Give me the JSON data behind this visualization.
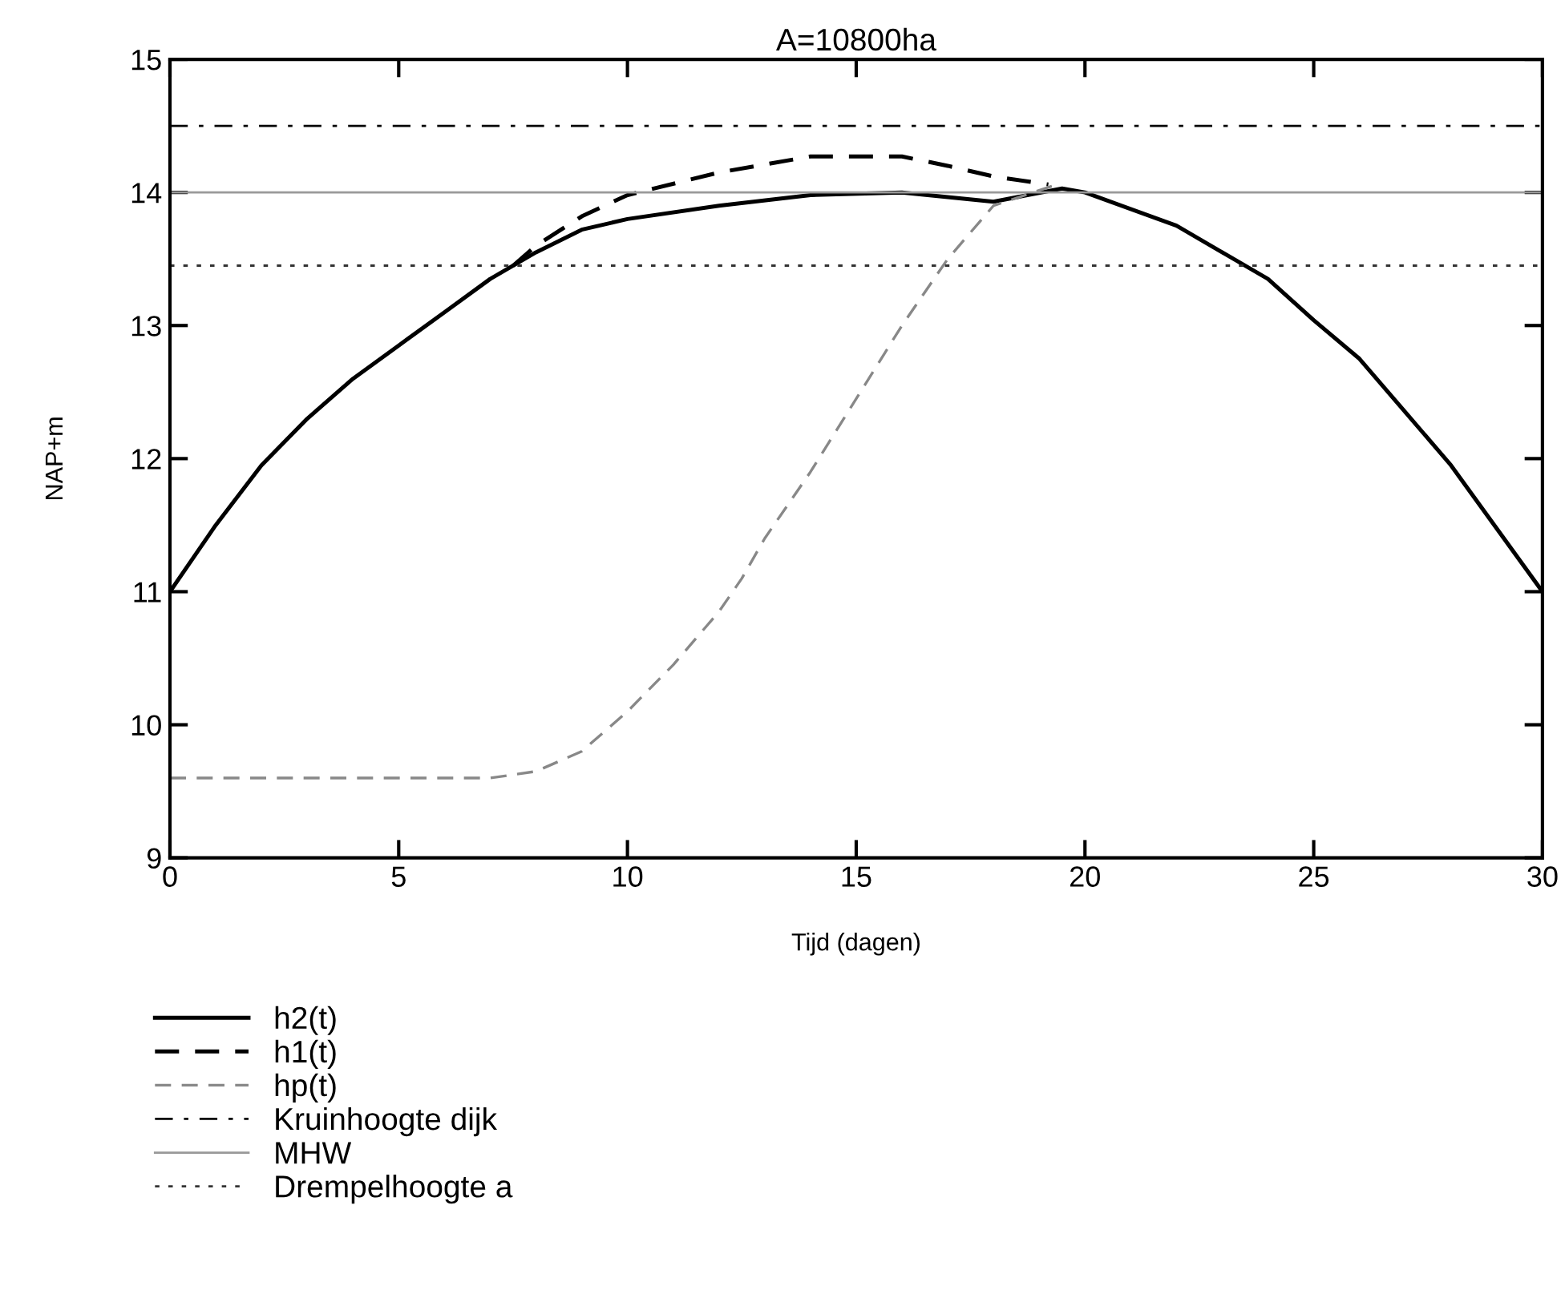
{
  "chart_data": {
    "type": "line",
    "title": "A=10800ha",
    "xlabel": "Tijd (dagen)",
    "ylabel": "NAP+m",
    "xlim": [
      0,
      30
    ],
    "ylim": [
      9,
      15
    ],
    "xticks": [
      0,
      5,
      10,
      15,
      20,
      25,
      30
    ],
    "yticks": [
      9,
      10,
      11,
      12,
      13,
      14,
      15
    ],
    "grid": false,
    "legend": "bottom left",
    "series": [
      {
        "name": "h2(t)",
        "color": "#000000",
        "line_style": "solid",
        "x": [
          0,
          1,
          2,
          3,
          4,
          5,
          6,
          7,
          8,
          9,
          10,
          12,
          14,
          16,
          18,
          19.5,
          20,
          22,
          24,
          25,
          26,
          28,
          30
        ],
        "values": [
          11.0,
          11.5,
          11.95,
          12.3,
          12.6,
          12.85,
          13.1,
          13.35,
          13.55,
          13.72,
          13.8,
          13.9,
          13.98,
          14.0,
          13.93,
          14.03,
          14.0,
          13.75,
          13.35,
          13.04,
          12.75,
          11.95,
          11.0
        ]
      },
      {
        "name": "h1(t)",
        "color": "#000000",
        "line_style": "dashed",
        "x": [
          7.5,
          8,
          9,
          10,
          12,
          14,
          16,
          17,
          18,
          19.2
        ],
        "values": [
          13.45,
          13.6,
          13.82,
          13.98,
          14.15,
          14.27,
          14.27,
          14.2,
          14.12,
          14.06
        ]
      },
      {
        "name": "hp(t)",
        "color": "#888888",
        "line_style": "dashed",
        "x": [
          0,
          7,
          8,
          9,
          10,
          11,
          12,
          12.5,
          13,
          14,
          15,
          16,
          17,
          18,
          19.3
        ],
        "values": [
          9.6,
          9.6,
          9.65,
          9.8,
          10.1,
          10.45,
          10.85,
          11.1,
          11.4,
          11.9,
          12.45,
          13.0,
          13.5,
          13.9,
          14.05
        ]
      }
    ],
    "ref_lines": [
      {
        "axis": "y",
        "value": 14.5,
        "label": "Kruinhoogte dijk",
        "color": "#000000",
        "line_style": "dashdot"
      },
      {
        "axis": "y",
        "value": 14.0,
        "label": "MHW",
        "color": "#999999",
        "line_style": "solid"
      },
      {
        "axis": "y",
        "value": 13.45,
        "label": "Drempelhoogte a",
        "color": "#333333",
        "line_style": "dotted"
      }
    ]
  }
}
